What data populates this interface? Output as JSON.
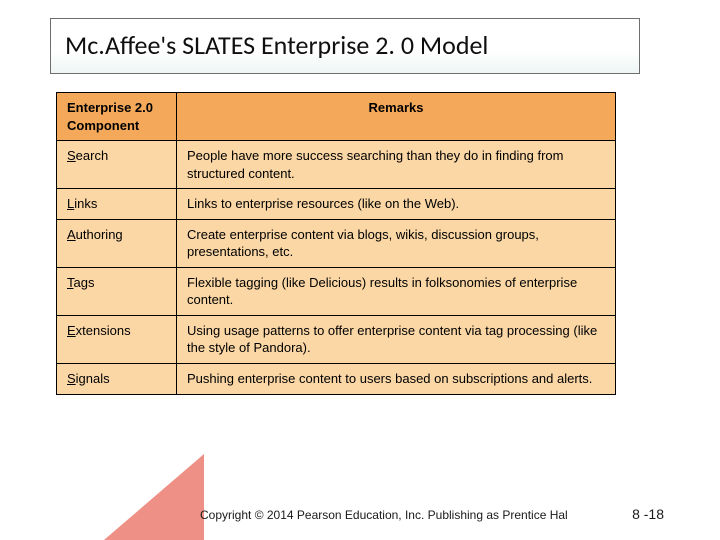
{
  "title": "Mc.Affee's SLATES Enterprise 2. 0 Model",
  "colors": {
    "header_bg": "#f4a85a",
    "body_bg": "#fbd7a6",
    "border": "#000000",
    "accent": "#e86b5c",
    "title_border": "#6e6e6e"
  },
  "table": {
    "header": {
      "col1": "Enterprise 2.0 Component",
      "col2": "Remarks"
    },
    "rows": [
      {
        "component": "Search",
        "remark": "People have more success searching than they do in finding from structured content."
      },
      {
        "component": "Links",
        "remark": "Links to enterprise resources (like on the Web)."
      },
      {
        "component": "Authoring",
        "remark": "Create enterprise content via blogs, wikis, discussion groups, presentations, etc."
      },
      {
        "component": "Tags",
        "remark": "Flexible tagging (like Delicious) results in folksonomies of enterprise content."
      },
      {
        "component": "Extensions",
        "remark": "Using usage patterns to offer enterprise content via tag processing (like the style of Pandora)."
      },
      {
        "component": "Signals",
        "remark": "Pushing enterprise content to users based on subscriptions and alerts."
      }
    ]
  },
  "footer": {
    "copyright": "Copyright © 2014 Pearson Education, Inc. Publishing as Prentice Hal",
    "page": "8 -18"
  }
}
